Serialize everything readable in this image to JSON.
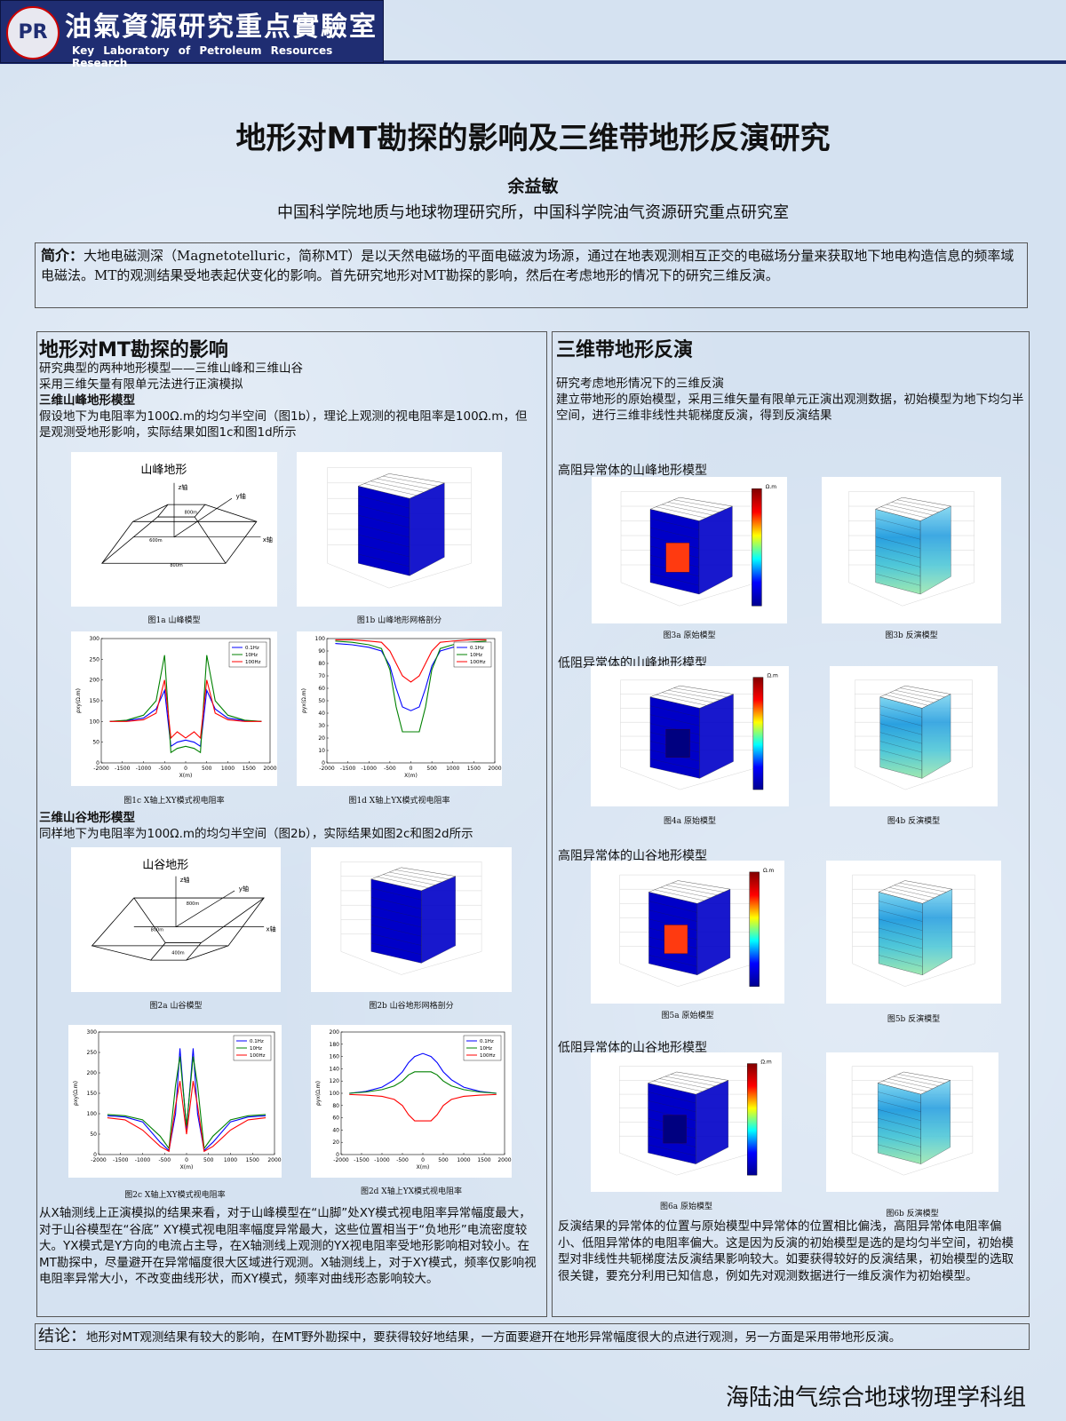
{
  "header": {
    "logo": "PR",
    "name": "油氣資源研究重点實驗室",
    "name_en": "Key Laboratory of Petroleum Resources Research"
  },
  "title": "地形对MT勘探的影响及三维带地形反演研究",
  "author": "余益敏",
  "affiliation": "中国科学院地质与地球物理研究所，中国科学院油气资源研究重点研究室",
  "intro": {
    "label": "简介：",
    "text": "大地电磁测深（Magnetotelluric，简称MT）是以天然电磁场的平面电磁波为场源，通过在地表观测相互正交的电磁场分量来获取地下地电构造信息的频率域电磁法。MT的观测结果受地表起伏变化的影响。首先研究地形对MT勘探的影响，然后在考虑地形的情况下的研究三维反演。"
  },
  "left": {
    "heading": "地形对MT勘探的影响",
    "lines": [
      "研究典型的两种地形模型——三维山峰和三维山谷",
      "采用三维矢量有限单元法进行正演模拟"
    ],
    "peak": {
      "heading": "三维山峰地形模型",
      "text": "假设地下为电阻率为100Ω.m的均匀半空间（图1b），理论上观测的视电阻率是100Ω.m，但是观测受地形影响，实际结果如图1c和图1d所示"
    },
    "valley": {
      "heading": "三维山谷地形模型",
      "text": "同样地下为电阻率为100Ω.m的均匀半空间（图2b），实际结果如图2c和图2d所示"
    },
    "summary": "从X轴测线上正演模拟的结果来看，对于山峰模型在“山脚”处XY模式视电阻率异常幅度最大，对于山谷模型在“谷底” XY模式视电阻率幅度异常最大，这些位置相当于“负地形”电流密度较大。YX模式是Y方向的电流占主导，在X轴测线上观测的YX视电阻率受地形影响相对较小。在MT勘探中，尽量避开在异常幅度很大区域进行观测。X轴测线上，对于XY模式，频率仅影响视电阻率异常大小，不改变曲线形状，而XY模式，频率对曲线形态影响较大。"
  },
  "figures": {
    "fig1a": {
      "caption": "图1a 山峰模型",
      "label": "山峰地形",
      "marks": [
        "z轴",
        "y轴",
        "x轴",
        "800m",
        "600m",
        "800m"
      ]
    },
    "fig1b": {
      "caption": "图1b 山峰地形网格剖分"
    },
    "fig1c": {
      "caption": "图1c X轴上XY模式视电阻率",
      "xlabel": "X(m)",
      "ylabel": "ρxy(Ω.m)",
      "xlim": [
        -2000,
        2000
      ],
      "xticks": [
        -2000,
        -1500,
        -1000,
        -500,
        0,
        500,
        1000,
        1500,
        2000
      ],
      "ylim": [
        0,
        300
      ],
      "yticks": [
        0,
        50,
        100,
        150,
        200,
        250,
        300
      ],
      "x": [
        -1800,
        -1400,
        -1000,
        -700,
        -500,
        -350,
        -200,
        0,
        200,
        350,
        500,
        700,
        1000,
        1400,
        1800
      ],
      "series": [
        {
          "name": "0.1Hz",
          "color": "#0000ff",
          "values": [
            100,
            102,
            108,
            130,
            175,
            40,
            50,
            55,
            50,
            40,
            175,
            130,
            108,
            102,
            100
          ]
        },
        {
          "name": "10Hz",
          "color": "#008000",
          "values": [
            100,
            103,
            115,
            150,
            260,
            25,
            35,
            40,
            35,
            25,
            260,
            150,
            115,
            103,
            100
          ]
        },
        {
          "name": "100Hz",
          "color": "#ff0000",
          "values": [
            100,
            100,
            104,
            120,
            200,
            60,
            75,
            60,
            75,
            60,
            200,
            120,
            104,
            100,
            100
          ]
        }
      ]
    },
    "fig1d": {
      "caption": "图1d X轴上YX模式视电阻率",
      "xlabel": "X(m)",
      "ylabel": "ρyx(Ω.m)",
      "xlim": [
        -2000,
        2000
      ],
      "xticks": [
        -2000,
        -1500,
        -1000,
        -500,
        0,
        500,
        1000,
        1500,
        2000
      ],
      "ylim": [
        0,
        100
      ],
      "yticks": [
        0,
        10,
        20,
        30,
        40,
        50,
        60,
        70,
        80,
        90,
        100
      ],
      "x": [
        -1800,
        -1400,
        -1000,
        -700,
        -500,
        -350,
        -200,
        0,
        200,
        350,
        500,
        700,
        1000,
        1400,
        1800
      ],
      "series": [
        {
          "name": "0.1Hz",
          "color": "#0000ff",
          "values": [
            96,
            95,
            93,
            90,
            78,
            60,
            45,
            42,
            45,
            60,
            78,
            90,
            93,
            95,
            96
          ]
        },
        {
          "name": "10Hz",
          "color": "#008000",
          "values": [
            98,
            97,
            95,
            92,
            75,
            45,
            25,
            25,
            25,
            45,
            75,
            92,
            95,
            97,
            98
          ]
        },
        {
          "name": "100Hz",
          "color": "#ff0000",
          "values": [
            99,
            99,
            98,
            97,
            90,
            80,
            70,
            65,
            70,
            80,
            90,
            97,
            98,
            99,
            99
          ]
        }
      ]
    },
    "fig2a": {
      "caption": "图2a 山谷模型",
      "label": "山谷地形",
      "marks": [
        "z轴",
        "y轴",
        "x轴",
        "800m",
        "800m",
        "400m"
      ]
    },
    "fig2b": {
      "caption": "图2b 山谷地形网格剖分"
    },
    "fig2c": {
      "caption": "图2c X轴上XY模式视电阻率",
      "xlabel": "X(m)",
      "ylabel": "ρxy(Ω.m)",
      "xlim": [
        -2000,
        2000
      ],
      "xticks": [
        -2000,
        -1500,
        -1000,
        -500,
        0,
        500,
        1000,
        1500,
        2000
      ],
      "ylim": [
        0,
        300
      ],
      "yticks": [
        0,
        50,
        100,
        150,
        200,
        250,
        300
      ],
      "x": [
        -1800,
        -1400,
        -1000,
        -600,
        -400,
        -250,
        -150,
        0,
        150,
        250,
        400,
        600,
        1000,
        1400,
        1800
      ],
      "series": [
        {
          "name": "0.1Hz",
          "color": "#0000ff",
          "values": [
            95,
            92,
            80,
            30,
            10,
            100,
            260,
            60,
            260,
            100,
            10,
            30,
            80,
            92,
            95
          ]
        },
        {
          "name": "10Hz",
          "color": "#008000",
          "values": [
            98,
            95,
            85,
            45,
            15,
            170,
            240,
            70,
            240,
            170,
            15,
            45,
            85,
            95,
            98
          ]
        },
        {
          "name": "100Hz",
          "color": "#ff0000",
          "values": [
            90,
            85,
            60,
            20,
            8,
            120,
            180,
            50,
            180,
            120,
            8,
            20,
            60,
            85,
            90
          ]
        }
      ]
    },
    "fig2d": {
      "caption": "图2d X轴上YX模式视电阻率",
      "xlabel": "X(m)",
      "ylabel": "ρyx(Ω.m)",
      "xlim": [
        -2000,
        2000
      ],
      "xticks": [
        -2000,
        -1500,
        -1000,
        -500,
        0,
        500,
        1000,
        1500,
        2000
      ],
      "ylim": [
        0,
        200
      ],
      "yticks": [
        0,
        20,
        40,
        60,
        80,
        100,
        120,
        140,
        160,
        180,
        200
      ],
      "x": [
        -1800,
        -1400,
        -1000,
        -700,
        -500,
        -350,
        -200,
        0,
        200,
        350,
        500,
        700,
        1000,
        1400,
        1800
      ],
      "series": [
        {
          "name": "0.1Hz",
          "color": "#0000ff",
          "values": [
            100,
            103,
            110,
            122,
            135,
            150,
            160,
            165,
            160,
            150,
            135,
            122,
            110,
            103,
            100
          ]
        },
        {
          "name": "10Hz",
          "color": "#008000",
          "values": [
            100,
            102,
            106,
            112,
            120,
            130,
            135,
            135,
            135,
            130,
            120,
            112,
            106,
            102,
            100
          ]
        },
        {
          "name": "100Hz",
          "color": "#ff0000",
          "values": [
            98,
            97,
            95,
            90,
            80,
            65,
            55,
            55,
            55,
            65,
            80,
            90,
            95,
            97,
            98
          ]
        }
      ]
    }
  },
  "right": {
    "heading": "三维带地形反演",
    "lines": [
      "研究考虑地形情况下的三维反演",
      "建立带地形的原始模型，采用三维矢量有限单元正演出观测数据，初始模型为地下均匀半空间，进行三维非线性共轭梯度反演，得到反演结果"
    ],
    "cases": [
      {
        "title": "高阻异常体的山峰地形模型",
        "unit": "Ω.m",
        "captions": [
          "图3a 原始模型",
          "图3b 反演模型"
        ]
      },
      {
        "title": "低阻异常体的山峰地形模型",
        "unit": "Ω.m",
        "captions": [
          "图4a 原始模型",
          "图4b 反演模型"
        ]
      },
      {
        "title": "高阻异常体的山谷地形模型",
        "unit": "Ω.m",
        "captions": [
          "图5a 原始模型",
          "图5b 反演模型"
        ]
      },
      {
        "title": "低阻异常体的山谷地形模型",
        "unit": "Ω.m",
        "captions": [
          "图6a 原始模型",
          "图6b 反演模型"
        ]
      }
    ],
    "summary": "反演结果的异常体的位置与原始模型中异常体的位置相比偏浅，高阻异常体电阻率偏小、低阻异常体的电阻率偏大。这是因为反演的初始模型是选的是均匀半空间，初始模型对非线性共轭梯度法反演结果影响较大。如要获得较好的反演结果，初始模型的选取很关键，要充分利用已知信息，例如先对观测数据进行一维反演作为初始模型。"
  },
  "conclusion": {
    "label": "结论：",
    "text": "地形对MT观测结果有较大的影响，在MT野外勘探中，要获得较好地结果，一方面要避开在地形异常幅度很大的点进行观测，另一方面是采用带地形反演。"
  },
  "footer": "海陆油气综合地球物理学科组"
}
